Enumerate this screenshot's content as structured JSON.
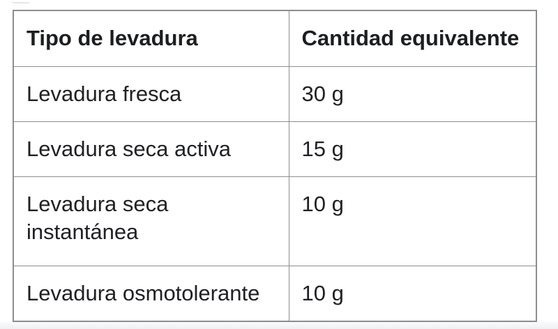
{
  "chart_data": {
    "type": "table",
    "columns": [
      "Tipo de levadura",
      "Cantidad equivalente"
    ],
    "rows": [
      [
        "Levadura fresca",
        "30 g"
      ],
      [
        "Levadura seca activa",
        "15 g"
      ],
      [
        "Levadura seca instantánea",
        "10 g"
      ],
      [
        "Levadura osmotolerante",
        "10 g"
      ]
    ]
  },
  "colors": {
    "table_border": "#8b8e91",
    "text": "#202124",
    "cell_background": "#ffffff",
    "page_strip": "#eef1f2"
  }
}
